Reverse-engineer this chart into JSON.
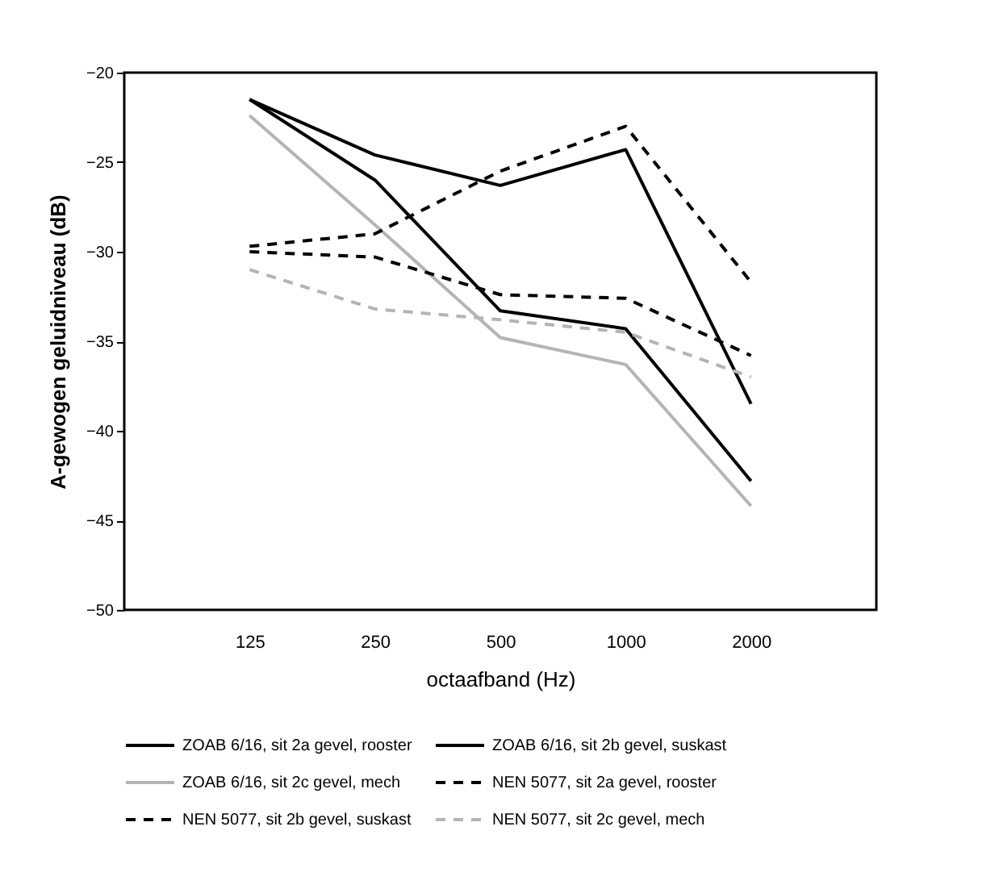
{
  "chart_data": {
    "type": "line",
    "xlabel": "octaafband (Hz)",
    "ylabel": "A-gewogen geluidniveau (dB)",
    "categories": [
      "125",
      "250",
      "500",
      "1000",
      "2000"
    ],
    "ylim": [
      -50,
      -20
    ],
    "yticks": [
      -50,
      -45,
      -40,
      -35,
      -30,
      -25,
      -20
    ],
    "grid": false,
    "legend": "bottom",
    "marker": "none",
    "series": [
      {
        "name": "ZOAB 6/16, sit 2a gevel, rooster",
        "color": "#000000",
        "line_style": "solid",
        "values": [
          -21.5,
          -24.6,
          -26.3,
          -24.3,
          -38.5
        ]
      },
      {
        "name": "ZOAB 6/16, sit 2b gevel, suskast",
        "color": "#000000",
        "line_style": "solid",
        "values": [
          -21.5,
          -26,
          -33.3,
          -34.3,
          -42.8
        ]
      },
      {
        "name": "ZOAB 6/16, sit 2c gevel, mech",
        "color": "#b4b4b4",
        "line_style": "solid",
        "values": [
          -22.4,
          -28.5,
          -34.8,
          -36.3,
          -44.2
        ]
      },
      {
        "name": "NEN 5077, sit 2a gevel, rooster",
        "color": "#000000",
        "line_style": "dashed",
        "values": [
          -29.7,
          -29,
          -25.5,
          -23,
          -31.7
        ]
      },
      {
        "name": "NEN 5077, sit 2b gevel, suskast",
        "color": "#000000",
        "line_style": "dashed",
        "values": [
          -30,
          -30.3,
          -32.4,
          -32.6,
          -35.8
        ]
      },
      {
        "name": "NEN 5077, sit 2c gevel, mech",
        "color": "#b4b4b4",
        "line_style": "dashed",
        "values": [
          -31,
          -33.2,
          -33.8,
          -34.5,
          -37
        ]
      }
    ]
  }
}
